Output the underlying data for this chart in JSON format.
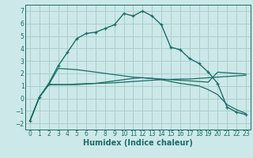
{
  "xlabel": "Humidex (Indice chaleur)",
  "bg_color": "#cde8e8",
  "grid_color": "#aacece",
  "line_color": "#1a6e6a",
  "ylim": [
    -2.5,
    7.5
  ],
  "xlim": [
    -0.5,
    23.5
  ],
  "yticks": [
    -2,
    -1,
    0,
    1,
    2,
    3,
    4,
    5,
    6,
    7
  ],
  "xticks": [
    0,
    1,
    2,
    3,
    4,
    5,
    6,
    7,
    8,
    9,
    10,
    11,
    12,
    13,
    14,
    15,
    16,
    17,
    18,
    19,
    20,
    21,
    22,
    23
  ],
  "curve1_x": [
    0,
    1,
    2,
    3,
    4,
    5,
    6,
    7,
    8,
    9,
    10,
    11,
    12,
    13,
    14,
    15,
    16,
    17,
    18,
    19,
    20,
    21,
    22,
    23
  ],
  "curve1_y": [
    -1.8,
    0.1,
    1.2,
    2.6,
    3.7,
    4.8,
    5.2,
    5.3,
    5.6,
    5.9,
    6.8,
    6.6,
    7.0,
    6.6,
    5.9,
    4.1,
    3.9,
    3.2,
    2.8,
    2.1,
    1.2,
    -0.7,
    -1.1,
    -1.3
  ],
  "curve2_x": [
    0,
    1,
    2,
    3,
    4,
    5,
    6,
    7,
    8,
    9,
    10,
    11,
    12,
    13,
    14,
    15,
    16,
    17,
    18,
    19,
    20,
    21,
    22,
    23
  ],
  "curve2_y": [
    -1.8,
    0.1,
    1.1,
    1.1,
    1.1,
    1.15,
    1.18,
    1.2,
    1.22,
    1.25,
    1.3,
    1.35,
    1.4,
    1.45,
    1.5,
    1.52,
    1.55,
    1.55,
    1.6,
    1.65,
    1.7,
    1.75,
    1.8,
    1.85
  ],
  "curve3_x": [
    0,
    1,
    2,
    3,
    4,
    5,
    6,
    7,
    8,
    9,
    10,
    11,
    12,
    13,
    14,
    15,
    16,
    17,
    18,
    19,
    20,
    21,
    22,
    23
  ],
  "curve3_y": [
    -1.8,
    0.1,
    1.1,
    1.1,
    1.1,
    1.1,
    1.15,
    1.2,
    1.3,
    1.4,
    1.5,
    1.6,
    1.65,
    1.6,
    1.5,
    1.35,
    1.2,
    1.1,
    1.0,
    0.7,
    0.3,
    -0.5,
    -0.9,
    -1.2
  ],
  "curve4_x": [
    0,
    1,
    2,
    3,
    4,
    5,
    6,
    7,
    8,
    9,
    10,
    11,
    12,
    13,
    14,
    15,
    16,
    17,
    18,
    19,
    20,
    21,
    22,
    23
  ],
  "curve4_y": [
    -1.8,
    0.1,
    1.1,
    2.4,
    2.35,
    2.3,
    2.2,
    2.1,
    2.0,
    1.9,
    1.8,
    1.7,
    1.65,
    1.6,
    1.55,
    1.5,
    1.45,
    1.4,
    1.35,
    1.3,
    2.1,
    2.05,
    2.0,
    1.95
  ]
}
